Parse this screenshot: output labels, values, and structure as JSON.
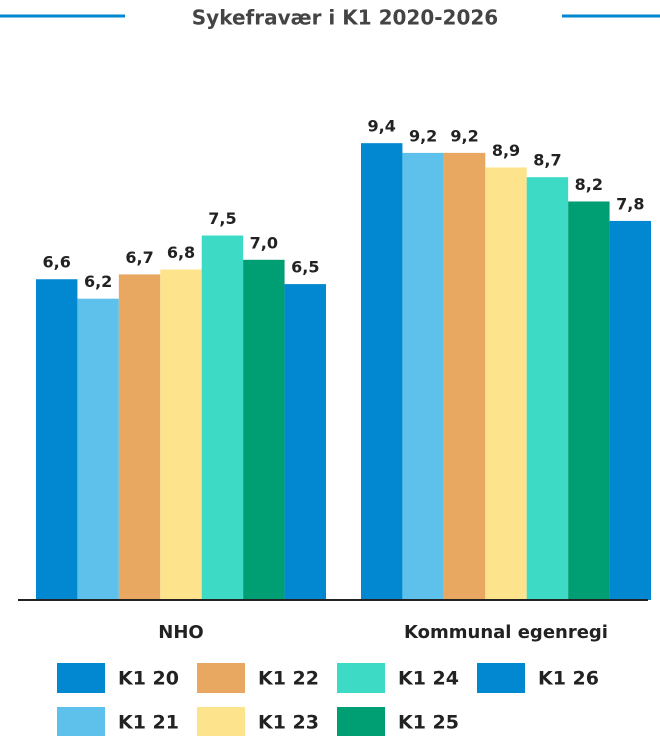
{
  "chart_data": {
    "type": "bar",
    "title": "Sykefravær i K1 2020-2026",
    "categories": [
      "NHO",
      "Kommunal egenregi"
    ],
    "ylim": [
      0,
      10
    ],
    "series": [
      {
        "name": "K1 20",
        "color": "#0288d1",
        "values": [
          6.6,
          9.4
        ],
        "value_labels": [
          "6,6",
          "9,4"
        ]
      },
      {
        "name": "K1 21",
        "color": "#5ec1eb",
        "values": [
          6.2,
          9.2
        ],
        "value_labels": [
          "6,2",
          "9,2"
        ]
      },
      {
        "name": "K1 22",
        "color": "#e8a862",
        "values": [
          6.7,
          9.2
        ],
        "value_labels": [
          "6,7",
          "9,2"
        ]
      },
      {
        "name": "K1 23",
        "color": "#fce38c",
        "values": [
          6.8,
          8.9
        ],
        "value_labels": [
          "6,8",
          "8,9"
        ]
      },
      {
        "name": "K1 24",
        "color": "#3ddbc6",
        "values": [
          7.5,
          8.7
        ],
        "value_labels": [
          "7,5",
          "8,7"
        ]
      },
      {
        "name": "K1 25",
        "color": "#009e73",
        "values": [
          7.0,
          8.2
        ],
        "value_labels": [
          "7,0",
          "8,2"
        ]
      },
      {
        "name": "K1 26",
        "color": "#0288d1",
        "values": [
          6.5,
          7.8
        ],
        "value_labels": [
          "6,5",
          "7,8"
        ]
      }
    ]
  }
}
